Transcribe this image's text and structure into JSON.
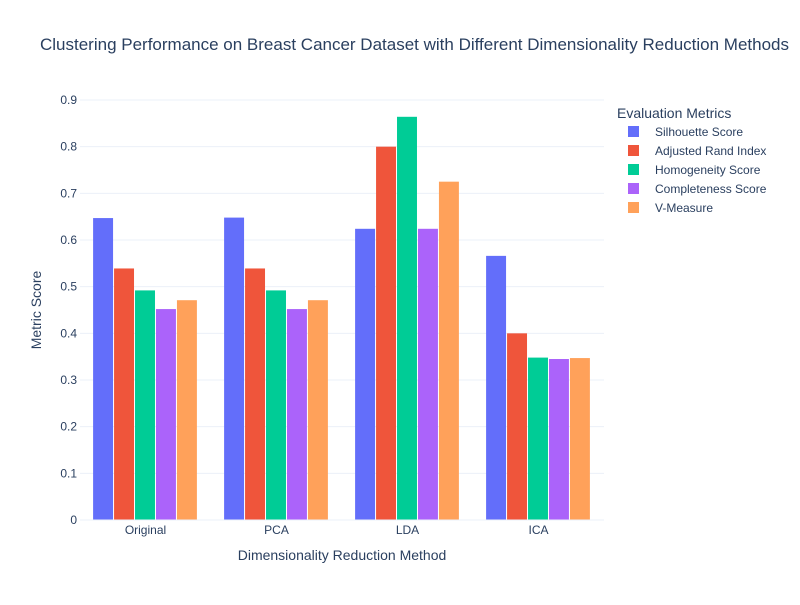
{
  "chart_data": {
    "type": "bar",
    "title": "Clustering Performance on Breast Cancer Dataset with Different Dimensionality Reduction Methods",
    "xlabel": "Dimensionality Reduction Method",
    "ylabel": "Metric Score",
    "categories": [
      "Original",
      "PCA",
      "LDA",
      "ICA"
    ],
    "ylim": [
      0,
      0.9
    ],
    "yticks": [
      "0",
      "0.1",
      "0.2",
      "0.3",
      "0.4",
      "0.5",
      "0.6",
      "0.7",
      "0.8",
      "0.9"
    ],
    "grid": true,
    "legend_title": "Evaluation Metrics",
    "legend_position": "right",
    "series": [
      {
        "name": "Silhouette Score",
        "color": "#636efa",
        "values": [
          0.647,
          0.648,
          0.624,
          0.566
        ]
      },
      {
        "name": "Adjusted Rand Index",
        "color": "#ef553b",
        "values": [
          0.539,
          0.539,
          0.8,
          0.4
        ]
      },
      {
        "name": "Homogeneity Score",
        "color": "#00cc96",
        "values": [
          0.492,
          0.492,
          0.864,
          0.348
        ]
      },
      {
        "name": "Completeness Score",
        "color": "#ab63fa",
        "values": [
          0.452,
          0.452,
          0.624,
          0.345
        ]
      },
      {
        "name": "V-Measure",
        "color": "#ffa15a",
        "values": [
          0.471,
          0.471,
          0.725,
          0.347
        ]
      }
    ]
  }
}
